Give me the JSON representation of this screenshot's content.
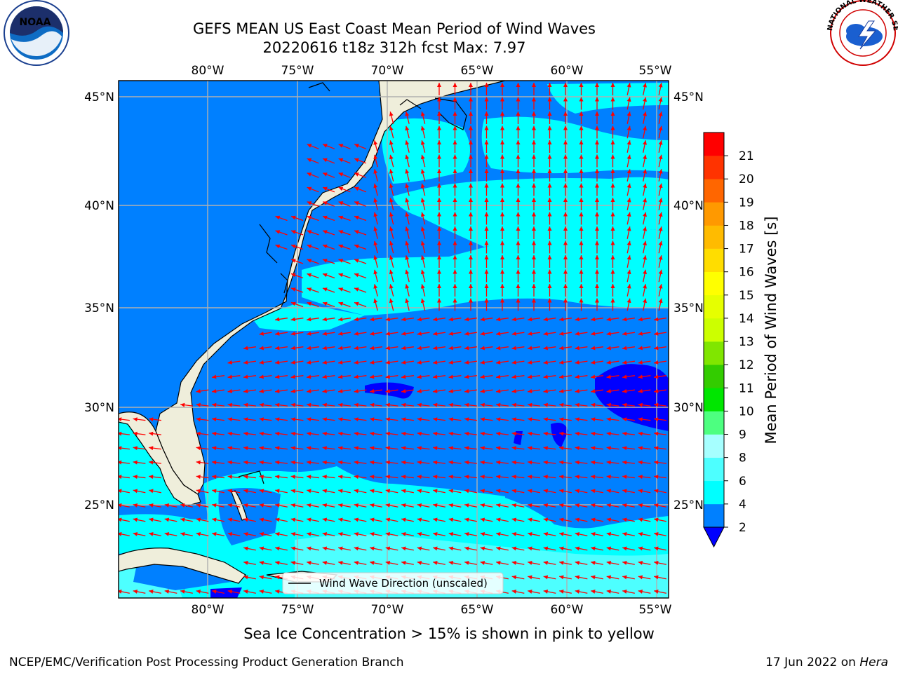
{
  "header": {
    "title_line1": "GEFS MEAN US East Coast Mean Period of Wind Waves",
    "title_line2": "20220616 t18z 312h fcst   Max: 7.97"
  },
  "logos": {
    "noaa": {
      "center_text": "NOAA",
      "icon": "noaa-logo"
    },
    "nws": {
      "ring_text": "NATIONAL WEATHER SERVICE",
      "icon": "nws-logo"
    }
  },
  "map": {
    "lon_labels": [
      "80°W",
      "75°W",
      "70°W",
      "65°W",
      "60°W",
      "55°W"
    ],
    "lat_labels": [
      "45°N",
      "40°N",
      "35°N",
      "30°N",
      "25°N"
    ],
    "legend_label": "Wind Wave Direction (unscaled)",
    "colors": {
      "land": "#efeedb",
      "coastline": "#000000",
      "grid": "#b0b0b0",
      "arrow": "#ff0000",
      "period_2_4": "#0080ff",
      "period_4_6": "#00ffff",
      "period_6_8": "#4dffff",
      "period_lt_2": "#0000ff"
    }
  },
  "colorbar": {
    "label": "Mean Period of Wind Waves [s]",
    "ticks": [
      "2",
      "4",
      "6",
      "8",
      "9",
      "10",
      "11",
      "12",
      "13",
      "14",
      "15",
      "16",
      "17",
      "18",
      "19",
      "20",
      "21"
    ],
    "colors": [
      "#0080ff",
      "#00ffff",
      "#4dffff",
      "#a6ffff",
      "#4dff80",
      "#00e600",
      "#33cc00",
      "#80e600",
      "#ccff00",
      "#e6ff00",
      "#ffff00",
      "#ffdd00",
      "#ffbb00",
      "#ff9900",
      "#ff6600",
      "#ff3300",
      "#ff0000"
    ],
    "under_color": "#0000ff"
  },
  "footer": {
    "note": "Sea Ice Concentration > 15% is shown in pink to yellow",
    "left": "NCEP/EMC/Verification Post Processing Product Generation Branch",
    "right_prefix": "17 Jun 2022 on",
    "right_host": "Hera"
  }
}
